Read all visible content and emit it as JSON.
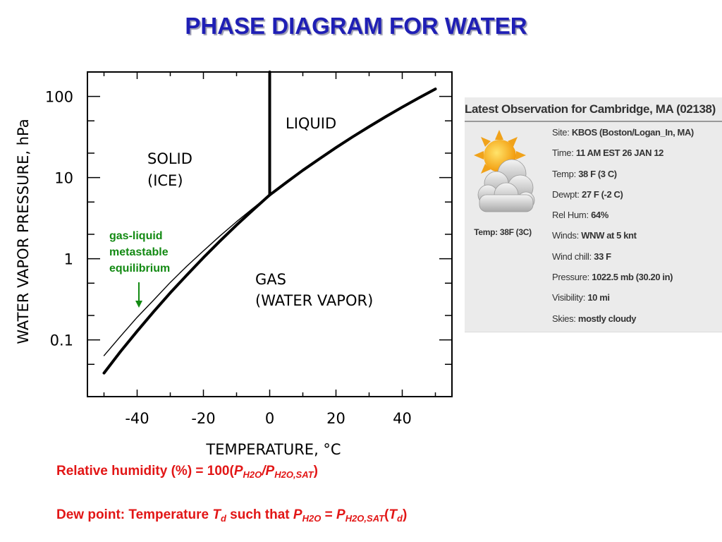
{
  "title": "PHASE DIAGRAM FOR WATER",
  "chart_data": {
    "type": "line",
    "xlabel": "TEMPERATURE, °C",
    "ylabel": "WATER VAPOR PRESSURE, hPa",
    "xlim": [
      -55,
      55
    ],
    "ylim": [
      0.02,
      200
    ],
    "yscale": "log",
    "grid": false,
    "xticks": [
      -40,
      -20,
      0,
      20,
      40
    ],
    "xtick_labels": [
      "-40",
      "-20",
      "0",
      "20",
      "40"
    ],
    "yticks": [
      0.1,
      1,
      10,
      100
    ],
    "ytick_labels": [
      "0.1",
      "1",
      "10",
      "100"
    ],
    "series": [
      {
        "style": "thick",
        "x": [
          -50,
          -45,
          -40,
          -35,
          -30,
          -25,
          -20,
          -15,
          -10,
          -5,
          0,
          5,
          10,
          15,
          20,
          25,
          30,
          35,
          40,
          45,
          50
        ],
        "y": [
          0.039,
          0.072,
          0.128,
          0.223,
          0.38,
          0.63,
          1.03,
          1.65,
          2.6,
          4.0,
          6.1,
          8.7,
          12.3,
          17.0,
          23.4,
          31.7,
          42.4,
          56.2,
          73.8,
          95.8,
          123.4
        ]
      },
      {
        "style": "thin",
        "x": [
          -50,
          -45,
          -40,
          -35,
          -30,
          -25,
          -20,
          -15,
          -10,
          -5,
          0
        ],
        "y": [
          0.064,
          0.111,
          0.19,
          0.31,
          0.51,
          0.81,
          1.25,
          1.91,
          2.86,
          4.2,
          6.1
        ]
      },
      {
        "style": "thick",
        "x": [
          0,
          0
        ],
        "y": [
          6.1,
          200
        ]
      }
    ],
    "regions": {
      "solid": [
        "SOLID",
        "(ICE)"
      ],
      "liquid": "LIQUID",
      "gas": [
        "GAS",
        "(WATER VAPOR)"
      ]
    },
    "annotation": [
      "gas-liquid",
      "metastable",
      "equilibrium"
    ]
  },
  "observation": {
    "heading": "Latest Observation for Cambridge, MA (02138)",
    "icon": "partly-cloudy-icon",
    "caption": "Temp: 38F (3C)",
    "fields": [
      {
        "label": "Site:",
        "value": "KBOS (Boston/Logan_In, MA)"
      },
      {
        "label": "Time:",
        "value": "11 AM EST 26 JAN 12"
      },
      {
        "label": "Temp:",
        "value": "38 F (3 C)"
      },
      {
        "label": "Dewpt:",
        "value": "27 F (-2 C)"
      },
      {
        "label": "Rel Hum:",
        "value": "64%"
      },
      {
        "label": "Winds:",
        "value": "WNW at 5 knt"
      },
      {
        "label": "Wind chill:",
        "value": "33 F"
      },
      {
        "label": "Pressure:",
        "value": "1022.5 mb (30.20 in)"
      },
      {
        "label": "Visibility:",
        "value": "10 mi"
      },
      {
        "label": "Skies:",
        "value": "mostly cloudy"
      }
    ]
  },
  "formulas": {
    "rh": {
      "prefix": "Relative humidity (%) = 100(",
      "p": "P",
      "s1": "H2O",
      "slash": "/",
      "p2": "P",
      "s2": "H2O,SAT",
      "close": ")"
    },
    "dew": {
      "prefix": "Dew point: Temperature ",
      "t": "T",
      "td": "d",
      "mid": " such that ",
      "p": "P",
      "s1": "H2O",
      "eq": " = ",
      "p2": "P",
      "s2": "H2O,SAT",
      "open": "(",
      "t2": "T",
      "td2": "d",
      "close": ")"
    }
  },
  "colors": {
    "title": "#1f1fb5",
    "annotation": "#138a13",
    "formula": "#e21616"
  }
}
